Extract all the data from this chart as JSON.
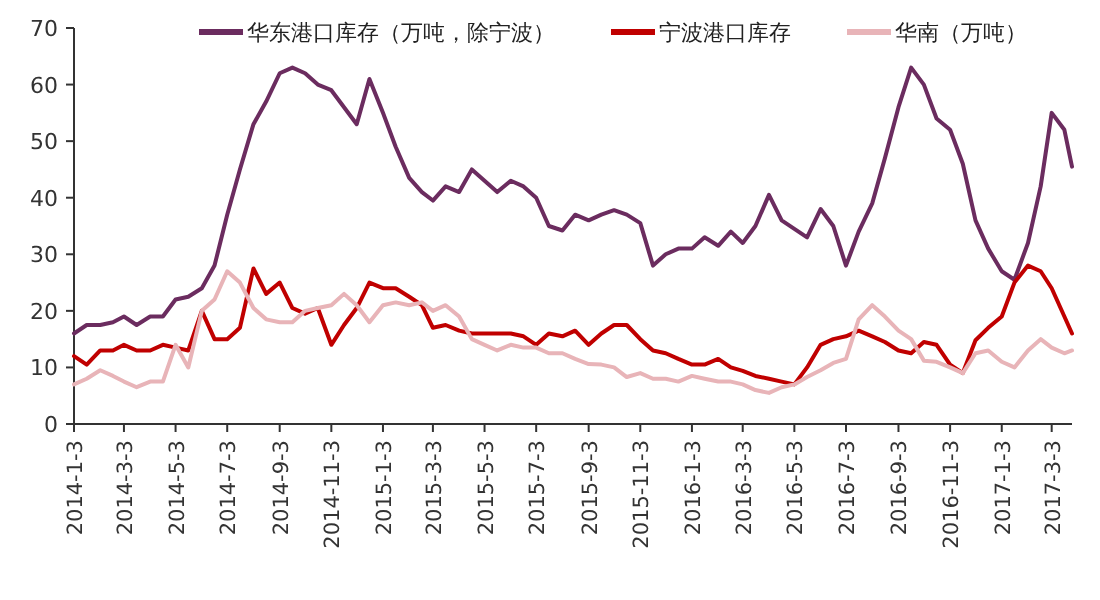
{
  "chart_data": {
    "type": "line",
    "x": [
      "2014-01-03",
      "2014-01-18",
      "2014-02-03",
      "2014-02-18",
      "2014-03-03",
      "2014-03-18",
      "2014-04-03",
      "2014-04-18",
      "2014-05-03",
      "2014-05-18",
      "2014-06-03",
      "2014-06-18",
      "2014-07-03",
      "2014-07-18",
      "2014-08-03",
      "2014-08-18",
      "2014-09-03",
      "2014-09-18",
      "2014-10-03",
      "2014-10-18",
      "2014-11-03",
      "2014-11-18",
      "2014-12-03",
      "2014-12-18",
      "2015-01-03",
      "2015-01-18",
      "2015-02-03",
      "2015-02-18",
      "2015-03-03",
      "2015-03-18",
      "2015-04-03",
      "2015-04-18",
      "2015-05-03",
      "2015-05-18",
      "2015-06-03",
      "2015-06-18",
      "2015-07-03",
      "2015-07-18",
      "2015-08-03",
      "2015-08-18",
      "2015-09-03",
      "2015-09-18",
      "2015-10-03",
      "2015-10-18",
      "2015-11-03",
      "2015-11-18",
      "2015-12-03",
      "2015-12-18",
      "2016-01-03",
      "2016-01-18",
      "2016-02-03",
      "2016-02-18",
      "2016-03-03",
      "2016-03-18",
      "2016-04-03",
      "2016-04-18",
      "2016-05-03",
      "2016-05-18",
      "2016-06-03",
      "2016-06-18",
      "2016-07-03",
      "2016-07-18",
      "2016-08-03",
      "2016-08-18",
      "2016-09-03",
      "2016-09-18",
      "2016-10-03",
      "2016-10-18",
      "2016-11-03",
      "2016-11-18",
      "2016-12-03",
      "2016-12-18",
      "2017-01-03",
      "2017-01-18",
      "2017-02-03",
      "2017-02-18",
      "2017-03-03",
      "2017-03-18",
      "2017-03-27"
    ],
    "series": [
      {
        "name": "华东港口库存（万吨，除宁波）",
        "color": "#6b2c5f",
        "values": [
          16,
          17.5,
          17.5,
          18,
          19,
          17.5,
          19,
          19,
          22,
          22.5,
          24,
          28,
          37,
          45,
          53,
          57,
          62,
          63,
          62,
          60,
          59,
          56,
          53,
          61,
          55,
          49,
          43.5,
          41,
          39.5,
          42,
          41,
          45,
          43,
          41,
          43,
          42,
          40,
          35,
          34.2,
          37,
          36,
          37,
          37.8,
          37,
          35.5,
          28,
          30,
          31,
          31,
          33,
          31.5,
          34,
          32,
          35,
          40.5,
          36,
          34.5,
          33,
          38,
          35,
          28,
          34,
          39,
          47,
          56,
          63,
          60,
          54,
          52,
          46,
          36,
          31,
          27,
          25.5,
          32,
          42,
          55,
          52,
          45.5
        ]
      },
      {
        "name": "宁波港口库存",
        "color": "#c00000",
        "values": [
          12,
          10.5,
          13,
          13,
          14,
          13,
          13,
          14,
          13.5,
          13,
          20,
          15,
          15,
          17,
          27.5,
          23,
          25,
          20.5,
          19.5,
          20.5,
          14,
          17.5,
          20.5,
          25,
          24,
          24,
          22.5,
          21,
          17,
          17.5,
          16.5,
          16,
          16,
          16,
          16,
          15.5,
          14,
          16,
          15.5,
          16.5,
          14,
          16,
          17.5,
          17.5,
          15,
          13,
          12.5,
          11.5,
          10.5,
          10.5,
          11.5,
          10,
          9.4,
          8.5,
          8,
          7.5,
          7,
          10,
          14,
          15,
          15.5,
          16.5,
          15.5,
          14.5,
          13,
          12.5,
          14.5,
          14,
          10.5,
          9,
          14.8,
          17,
          19,
          25,
          28,
          27,
          24,
          19,
          16
        ]
      },
      {
        "name": "华南（万吨）",
        "color": "#e8b4b8",
        "values": [
          7,
          8,
          9.5,
          8.5,
          7.5,
          6.5,
          7.5,
          7.5,
          14,
          10,
          20,
          22,
          27,
          25,
          20.5,
          18.5,
          18,
          18,
          20,
          20.5,
          21,
          23,
          21,
          18,
          21,
          21.5,
          21,
          21.5,
          20,
          21,
          19,
          15,
          14,
          13,
          14,
          13.5,
          13.5,
          12.5,
          12.5,
          11.5,
          10.6,
          10.5,
          10,
          8.3,
          9,
          8,
          8,
          7.5,
          8.5,
          8,
          7.5,
          7.5,
          7,
          6,
          5.5,
          6.5,
          7,
          8.3,
          9.5,
          10.8,
          11.5,
          18.5,
          21,
          19,
          16.5,
          15,
          11.2,
          11,
          10,
          9,
          12.5,
          13,
          11,
          10,
          13,
          15,
          13.5,
          12.5,
          13
        ]
      }
    ],
    "xlim": [
      "2014-01-03",
      "2017-03-27"
    ],
    "xticks": [
      {
        "value": "2014-01-03",
        "label": "2014-1-3"
      },
      {
        "value": "2014-03-03",
        "label": "2014-3-3"
      },
      {
        "value": "2014-05-03",
        "label": "2014-5-3"
      },
      {
        "value": "2014-07-03",
        "label": "2014-7-3"
      },
      {
        "value": "2014-09-03",
        "label": "2014-9-3"
      },
      {
        "value": "2014-11-03",
        "label": "2014-11-3"
      },
      {
        "value": "2015-01-03",
        "label": "2015-1-3"
      },
      {
        "value": "2015-03-03",
        "label": "2015-3-3"
      },
      {
        "value": "2015-05-03",
        "label": "2015-5-3"
      },
      {
        "value": "2015-07-03",
        "label": "2015-7-3"
      },
      {
        "value": "2015-09-03",
        "label": "2015-9-3"
      },
      {
        "value": "2015-11-03",
        "label": "2015-11-3"
      },
      {
        "value": "2016-01-03",
        "label": "2016-1-3"
      },
      {
        "value": "2016-03-03",
        "label": "2016-3-3"
      },
      {
        "value": "2016-05-03",
        "label": "2016-5-3"
      },
      {
        "value": "2016-07-03",
        "label": "2016-7-3"
      },
      {
        "value": "2016-09-03",
        "label": "2016-9-3"
      },
      {
        "value": "2016-11-03",
        "label": "2016-11-3"
      },
      {
        "value": "2017-01-03",
        "label": "2017-1-3"
      },
      {
        "value": "2017-03-03",
        "label": "2017-3-3"
      }
    ],
    "ylim": [
      0,
      70
    ],
    "yticks": [
      0,
      10,
      20,
      30,
      40,
      50,
      60,
      70
    ],
    "grid": false,
    "legend": "top"
  }
}
